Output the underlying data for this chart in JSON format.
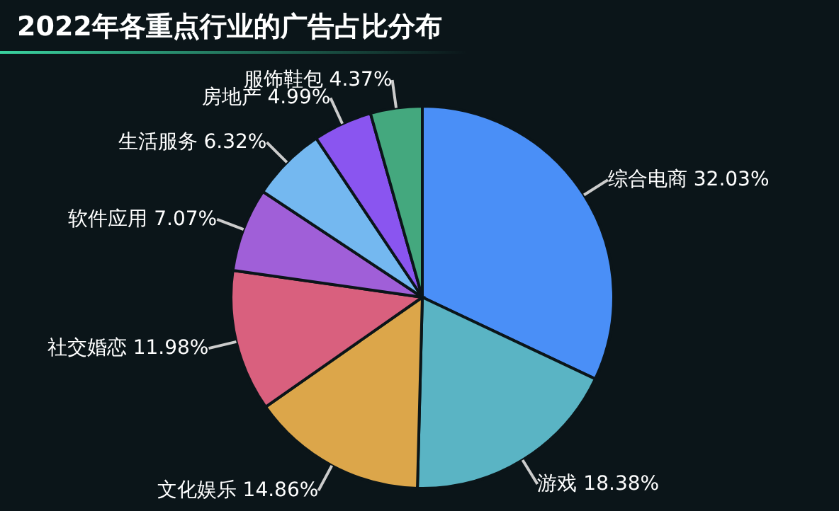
{
  "chart_data": {
    "type": "pie",
    "title": "2022年各重点行业的广告占比分布",
    "categories": [
      "综合电商",
      "游戏",
      "文化娱乐",
      "社交婚恋",
      "软件应用",
      "生活服务",
      "房地产",
      "服饰鞋包"
    ],
    "values": [
      32.03,
      18.38,
      14.86,
      11.98,
      7.07,
      6.32,
      4.99,
      4.37
    ],
    "value_labels": [
      "32.03%",
      "18.38%",
      "14.86%",
      "11.98%",
      "7.07%",
      "6.32%",
      "4.99%",
      "4.37%"
    ],
    "colors": [
      "#4a8ff7",
      "#5ab4c4",
      "#dca64a",
      "#d9607e",
      "#a05fd8",
      "#74b8f0",
      "#8a55f0",
      "#44a87e"
    ],
    "legend": false
  }
}
